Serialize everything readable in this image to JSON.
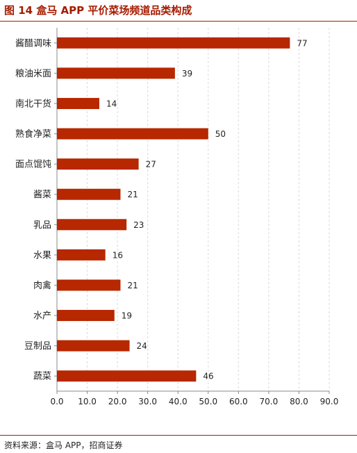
{
  "title": "图 14 盒马 APP 平价菜场频道品类构成",
  "source": "资料来源：盒马 APP，招商证券",
  "chart_data": {
    "type": "bar",
    "orientation": "horizontal",
    "title": "图 14 盒马 APP 平价菜场频道品类构成",
    "categories": [
      "酱醋调味",
      "粮油米面",
      "南北干货",
      "熟食净菜",
      "面点馄饨",
      "酱菜",
      "乳品",
      "水果",
      "肉禽",
      "水产",
      "豆制品",
      "蔬菜"
    ],
    "values": [
      77,
      39,
      14,
      50,
      27,
      21,
      23,
      16,
      21,
      19,
      24,
      46
    ],
    "xlim": [
      0,
      90
    ],
    "xticks": [
      "0.0",
      "10.0",
      "20.0",
      "30.0",
      "40.0",
      "50.0",
      "60.0",
      "70.0",
      "80.0",
      "90.0"
    ],
    "grid": true,
    "bar_color": "#b72700",
    "accent_color": "#a61c00"
  }
}
